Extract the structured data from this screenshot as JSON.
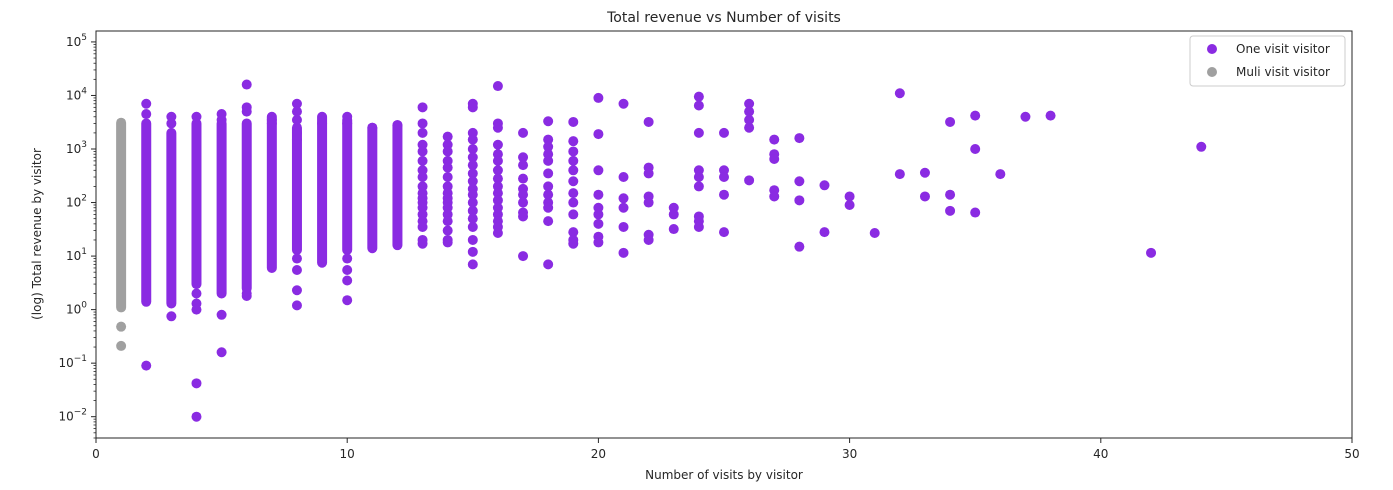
{
  "chart_data": {
    "type": "scatter",
    "title": "Total revenue vs Number of visits",
    "xlabel": "Number of visits by visitor",
    "ylabel": "(log) Total revenue by visitor",
    "xlim": [
      0,
      50
    ],
    "ylim": [
      0.004,
      160000
    ],
    "yscale": "log",
    "x_ticks": [
      0,
      10,
      20,
      30,
      40,
      50
    ],
    "y_ticks": [
      {
        "value": 0.01,
        "base": "10",
        "exp": "−2"
      },
      {
        "value": 0.1,
        "base": "10",
        "exp": "−1"
      },
      {
        "value": 1,
        "base": "10",
        "exp": "0"
      },
      {
        "value": 10,
        "base": "10",
        "exp": "1"
      },
      {
        "value": 100,
        "base": "10",
        "exp": "2"
      },
      {
        "value": 1000,
        "base": "10",
        "exp": "3"
      },
      {
        "value": 10000,
        "base": "10",
        "exp": "4"
      },
      {
        "value": 100000,
        "base": "10",
        "exp": "5"
      }
    ],
    "grid": false,
    "legend_position": "top-right",
    "series": [
      {
        "name": "One visit visitor",
        "color": "#8a2be2",
        "ranges": [
          {
            "x": 2,
            "min": 1.4,
            "max": 3000
          },
          {
            "x": 3,
            "min": 1.3,
            "max": 2000
          },
          {
            "x": 4,
            "min": 3.0,
            "max": 3000
          },
          {
            "x": 5,
            "min": 2.0,
            "max": 3000
          },
          {
            "x": 6,
            "min": 2.5,
            "max": 3000
          },
          {
            "x": 7,
            "min": 6.0,
            "max": 4000
          },
          {
            "x": 8,
            "min": 13,
            "max": 2500
          },
          {
            "x": 9,
            "min": 7.5,
            "max": 4000
          },
          {
            "x": 10,
            "min": 13,
            "max": 3500
          },
          {
            "x": 11,
            "min": 14,
            "max": 2500
          },
          {
            "x": 12,
            "min": 16,
            "max": 2800
          }
        ],
        "points": [
          [
            2,
            7000
          ],
          [
            2,
            4500
          ],
          [
            2,
            0.09
          ],
          [
            3,
            4000
          ],
          [
            3,
            3000
          ],
          [
            3,
            0.75
          ],
          [
            4,
            4000
          ],
          [
            4,
            2.0
          ],
          [
            4,
            1.3
          ],
          [
            4,
            1.0
          ],
          [
            4,
            0.042
          ],
          [
            4,
            0.01
          ],
          [
            5,
            4500
          ],
          [
            5,
            3500
          ],
          [
            5,
            0.8
          ],
          [
            5,
            0.16
          ],
          [
            6,
            16000
          ],
          [
            6,
            6000
          ],
          [
            6,
            5000
          ],
          [
            6,
            2.0
          ],
          [
            6,
            1.8
          ],
          [
            7,
            3500
          ],
          [
            7,
            3000
          ],
          [
            8,
            7000
          ],
          [
            8,
            5000
          ],
          [
            8,
            3500
          ],
          [
            8,
            2000
          ],
          [
            8,
            1500
          ],
          [
            8,
            9
          ],
          [
            8,
            5.5
          ],
          [
            8,
            2.3
          ],
          [
            8,
            1.2
          ],
          [
            9,
            3000
          ],
          [
            10,
            4000
          ],
          [
            10,
            3000
          ],
          [
            10,
            9
          ],
          [
            10,
            5.5
          ],
          [
            10,
            3.5
          ],
          [
            10,
            1.5
          ],
          [
            11,
            2500
          ],
          [
            12,
            2800
          ],
          [
            13,
            6000
          ],
          [
            13,
            3000
          ],
          [
            13,
            2000
          ],
          [
            13,
            1200
          ],
          [
            13,
            900
          ],
          [
            13,
            600
          ],
          [
            13,
            400
          ],
          [
            13,
            300
          ],
          [
            13,
            200
          ],
          [
            13,
            150
          ],
          [
            13,
            120
          ],
          [
            13,
            100
          ],
          [
            13,
            80
          ],
          [
            13,
            60
          ],
          [
            13,
            45
          ],
          [
            13,
            35
          ],
          [
            13,
            20
          ],
          [
            13,
            17
          ],
          [
            14,
            1700
          ],
          [
            14,
            1200
          ],
          [
            14,
            900
          ],
          [
            14,
            600
          ],
          [
            14,
            450
          ],
          [
            14,
            300
          ],
          [
            14,
            200
          ],
          [
            14,
            150
          ],
          [
            14,
            120
          ],
          [
            14,
            100
          ],
          [
            14,
            80
          ],
          [
            14,
            60
          ],
          [
            14,
            45
          ],
          [
            14,
            30
          ],
          [
            14,
            20
          ],
          [
            14,
            18
          ],
          [
            15,
            7000
          ],
          [
            15,
            6000
          ],
          [
            15,
            2000
          ],
          [
            15,
            1500
          ],
          [
            15,
            1000
          ],
          [
            15,
            700
          ],
          [
            15,
            500
          ],
          [
            15,
            350
          ],
          [
            15,
            250
          ],
          [
            15,
            180
          ],
          [
            15,
            140
          ],
          [
            15,
            100
          ],
          [
            15,
            70
          ],
          [
            15,
            50
          ],
          [
            15,
            35
          ],
          [
            15,
            20
          ],
          [
            15,
            12
          ],
          [
            15,
            7
          ],
          [
            16,
            15000
          ],
          [
            16,
            3000
          ],
          [
            16,
            2500
          ],
          [
            16,
            1200
          ],
          [
            16,
            800
          ],
          [
            16,
            600
          ],
          [
            16,
            400
          ],
          [
            16,
            280
          ],
          [
            16,
            200
          ],
          [
            16,
            150
          ],
          [
            16,
            110
          ],
          [
            16,
            80
          ],
          [
            16,
            60
          ],
          [
            16,
            45
          ],
          [
            16,
            35
          ],
          [
            16,
            27
          ],
          [
            17,
            2000
          ],
          [
            17,
            700
          ],
          [
            17,
            500
          ],
          [
            17,
            280
          ],
          [
            17,
            180
          ],
          [
            17,
            140
          ],
          [
            17,
            100
          ],
          [
            17,
            65
          ],
          [
            17,
            55
          ],
          [
            17,
            10
          ],
          [
            18,
            3300
          ],
          [
            18,
            1500
          ],
          [
            18,
            1100
          ],
          [
            18,
            800
          ],
          [
            18,
            600
          ],
          [
            18,
            350
          ],
          [
            18,
            200
          ],
          [
            18,
            140
          ],
          [
            18,
            100
          ],
          [
            18,
            80
          ],
          [
            18,
            45
          ],
          [
            18,
            7
          ],
          [
            19,
            3200
          ],
          [
            19,
            1400
          ],
          [
            19,
            900
          ],
          [
            19,
            600
          ],
          [
            19,
            400
          ],
          [
            19,
            250
          ],
          [
            19,
            150
          ],
          [
            19,
            100
          ],
          [
            19,
            60
          ],
          [
            19,
            28
          ],
          [
            19,
            20
          ],
          [
            19,
            17
          ],
          [
            20,
            9000
          ],
          [
            20,
            1900
          ],
          [
            20,
            400
          ],
          [
            20,
            140
          ],
          [
            20,
            80
          ],
          [
            20,
            60
          ],
          [
            20,
            40
          ],
          [
            20,
            23
          ],
          [
            20,
            18
          ],
          [
            21,
            7000
          ],
          [
            21,
            300
          ],
          [
            21,
            120
          ],
          [
            21,
            80
          ],
          [
            21,
            35
          ],
          [
            21,
            11.5
          ],
          [
            22,
            3200
          ],
          [
            22,
            450
          ],
          [
            22,
            350
          ],
          [
            22,
            130
          ],
          [
            22,
            100
          ],
          [
            22,
            25
          ],
          [
            22,
            20
          ],
          [
            23,
            80
          ],
          [
            23,
            60
          ],
          [
            23,
            32
          ],
          [
            24,
            9500
          ],
          [
            24,
            6500
          ],
          [
            24,
            2000
          ],
          [
            24,
            400
          ],
          [
            24,
            300
          ],
          [
            24,
            200
          ],
          [
            24,
            55
          ],
          [
            24,
            45
          ],
          [
            24,
            35
          ],
          [
            25,
            2000
          ],
          [
            25,
            400
          ],
          [
            25,
            300
          ],
          [
            25,
            140
          ],
          [
            25,
            28
          ],
          [
            26,
            7000
          ],
          [
            26,
            5000
          ],
          [
            26,
            3500
          ],
          [
            26,
            2500
          ],
          [
            26,
            260
          ],
          [
            27,
            1500
          ],
          [
            27,
            800
          ],
          [
            27,
            650
          ],
          [
            27,
            170
          ],
          [
            27,
            130
          ],
          [
            28,
            1600
          ],
          [
            28,
            250
          ],
          [
            28,
            110
          ],
          [
            28,
            15
          ],
          [
            29,
            210
          ],
          [
            29,
            28
          ],
          [
            30,
            130
          ],
          [
            30,
            90
          ],
          [
            31,
            27
          ],
          [
            32,
            11000
          ],
          [
            32,
            340
          ],
          [
            33,
            360
          ],
          [
            33,
            130
          ],
          [
            34,
            3200
          ],
          [
            34,
            140
          ],
          [
            34,
            70
          ],
          [
            35,
            4200
          ],
          [
            35,
            1000
          ],
          [
            35,
            65
          ],
          [
            36,
            340
          ],
          [
            37,
            4000
          ],
          [
            38,
            4200
          ],
          [
            42,
            11.5
          ],
          [
            44,
            1100
          ]
        ]
      },
      {
        "name": "Muli visit visitor",
        "color": "#a0a0a0",
        "ranges": [
          {
            "x": 1,
            "min": 1.1,
            "max": 3100
          }
        ],
        "points": [
          [
            1,
            0.48
          ],
          [
            1,
            0.21
          ]
        ]
      }
    ]
  }
}
